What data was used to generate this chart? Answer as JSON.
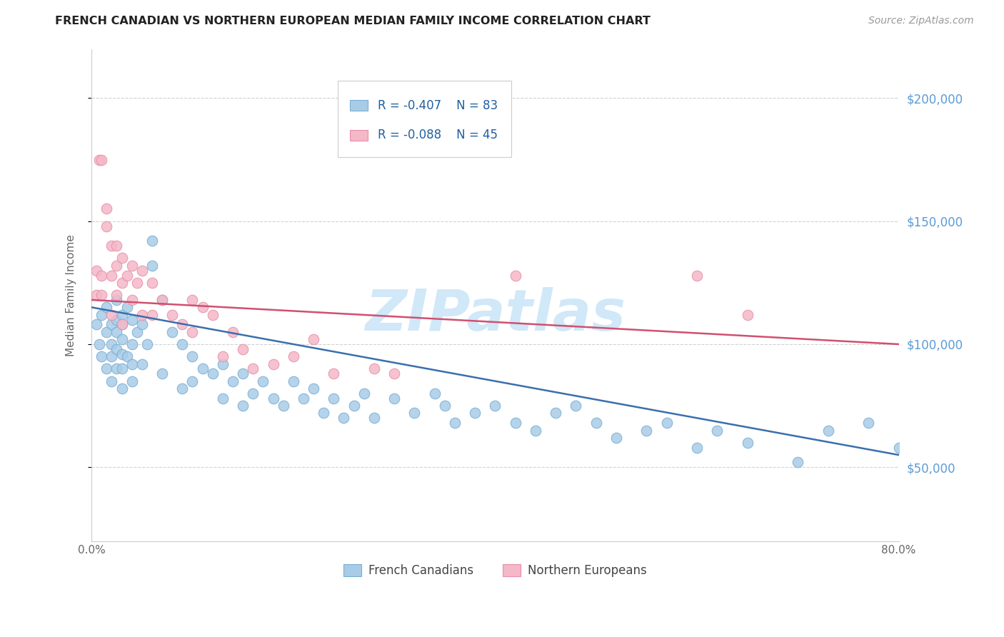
{
  "title": "FRENCH CANADIAN VS NORTHERN EUROPEAN MEDIAN FAMILY INCOME CORRELATION CHART",
  "source": "Source: ZipAtlas.com",
  "ylabel": "Median Family Income",
  "y_ticks": [
    50000,
    100000,
    150000,
    200000
  ],
  "y_tick_labels": [
    "$50,000",
    "$100,000",
    "$150,000",
    "$200,000"
  ],
  "xlim": [
    0.0,
    0.8
  ],
  "ylim": [
    20000,
    220000
  ],
  "blue_R": -0.407,
  "blue_N": 83,
  "pink_R": -0.088,
  "pink_N": 45,
  "blue_color": "#a8cce8",
  "pink_color": "#f4b8c8",
  "blue_edge_color": "#7aaed0",
  "pink_edge_color": "#e890a8",
  "blue_line_color": "#3a6fad",
  "pink_line_color": "#d05070",
  "legend_label_blue": "French Canadians",
  "legend_label_pink": "Northern Europeans",
  "watermark": "ZIPatlas",
  "watermark_color": "#d0e8f8",
  "blue_line_x0": 0.0,
  "blue_line_y0": 115000,
  "blue_line_x1": 0.8,
  "blue_line_y1": 55000,
  "pink_line_x0": 0.0,
  "pink_line_y0": 118000,
  "pink_line_x1": 0.8,
  "pink_line_y1": 100000,
  "blue_scatter_x": [
    0.005,
    0.008,
    0.01,
    0.01,
    0.015,
    0.015,
    0.015,
    0.02,
    0.02,
    0.02,
    0.02,
    0.025,
    0.025,
    0.025,
    0.025,
    0.025,
    0.03,
    0.03,
    0.03,
    0.03,
    0.03,
    0.03,
    0.035,
    0.035,
    0.04,
    0.04,
    0.04,
    0.04,
    0.045,
    0.05,
    0.05,
    0.055,
    0.06,
    0.06,
    0.07,
    0.07,
    0.08,
    0.09,
    0.09,
    0.1,
    0.1,
    0.11,
    0.12,
    0.13,
    0.13,
    0.14,
    0.15,
    0.15,
    0.16,
    0.17,
    0.18,
    0.19,
    0.2,
    0.21,
    0.22,
    0.23,
    0.24,
    0.25,
    0.26,
    0.27,
    0.28,
    0.3,
    0.32,
    0.34,
    0.35,
    0.36,
    0.38,
    0.4,
    0.42,
    0.44,
    0.46,
    0.48,
    0.5,
    0.52,
    0.55,
    0.57,
    0.6,
    0.62,
    0.65,
    0.7,
    0.73,
    0.77,
    0.8
  ],
  "blue_scatter_y": [
    108000,
    100000,
    112000,
    95000,
    115000,
    105000,
    90000,
    108000,
    100000,
    95000,
    85000,
    118000,
    110000,
    105000,
    98000,
    90000,
    112000,
    108000,
    102000,
    96000,
    90000,
    82000,
    115000,
    95000,
    110000,
    100000,
    92000,
    85000,
    105000,
    108000,
    92000,
    100000,
    142000,
    132000,
    118000,
    88000,
    105000,
    100000,
    82000,
    95000,
    85000,
    90000,
    88000,
    92000,
    78000,
    85000,
    88000,
    75000,
    80000,
    85000,
    78000,
    75000,
    85000,
    78000,
    82000,
    72000,
    78000,
    70000,
    75000,
    80000,
    70000,
    78000,
    72000,
    80000,
    75000,
    68000,
    72000,
    75000,
    68000,
    65000,
    72000,
    75000,
    68000,
    62000,
    65000,
    68000,
    58000,
    65000,
    60000,
    52000,
    65000,
    68000,
    58000
  ],
  "pink_scatter_x": [
    0.005,
    0.005,
    0.008,
    0.01,
    0.01,
    0.01,
    0.015,
    0.015,
    0.02,
    0.02,
    0.02,
    0.025,
    0.025,
    0.025,
    0.03,
    0.03,
    0.03,
    0.035,
    0.04,
    0.04,
    0.045,
    0.05,
    0.05,
    0.06,
    0.06,
    0.07,
    0.08,
    0.09,
    0.1,
    0.1,
    0.11,
    0.12,
    0.13,
    0.14,
    0.15,
    0.16,
    0.18,
    0.2,
    0.22,
    0.24,
    0.28,
    0.3,
    0.42,
    0.6,
    0.65
  ],
  "pink_scatter_y": [
    130000,
    120000,
    175000,
    175000,
    128000,
    120000,
    155000,
    148000,
    140000,
    128000,
    112000,
    140000,
    132000,
    120000,
    135000,
    125000,
    108000,
    128000,
    132000,
    118000,
    125000,
    130000,
    112000,
    125000,
    112000,
    118000,
    112000,
    108000,
    118000,
    105000,
    115000,
    112000,
    95000,
    105000,
    98000,
    90000,
    92000,
    95000,
    102000,
    88000,
    90000,
    88000,
    128000,
    128000,
    112000
  ]
}
